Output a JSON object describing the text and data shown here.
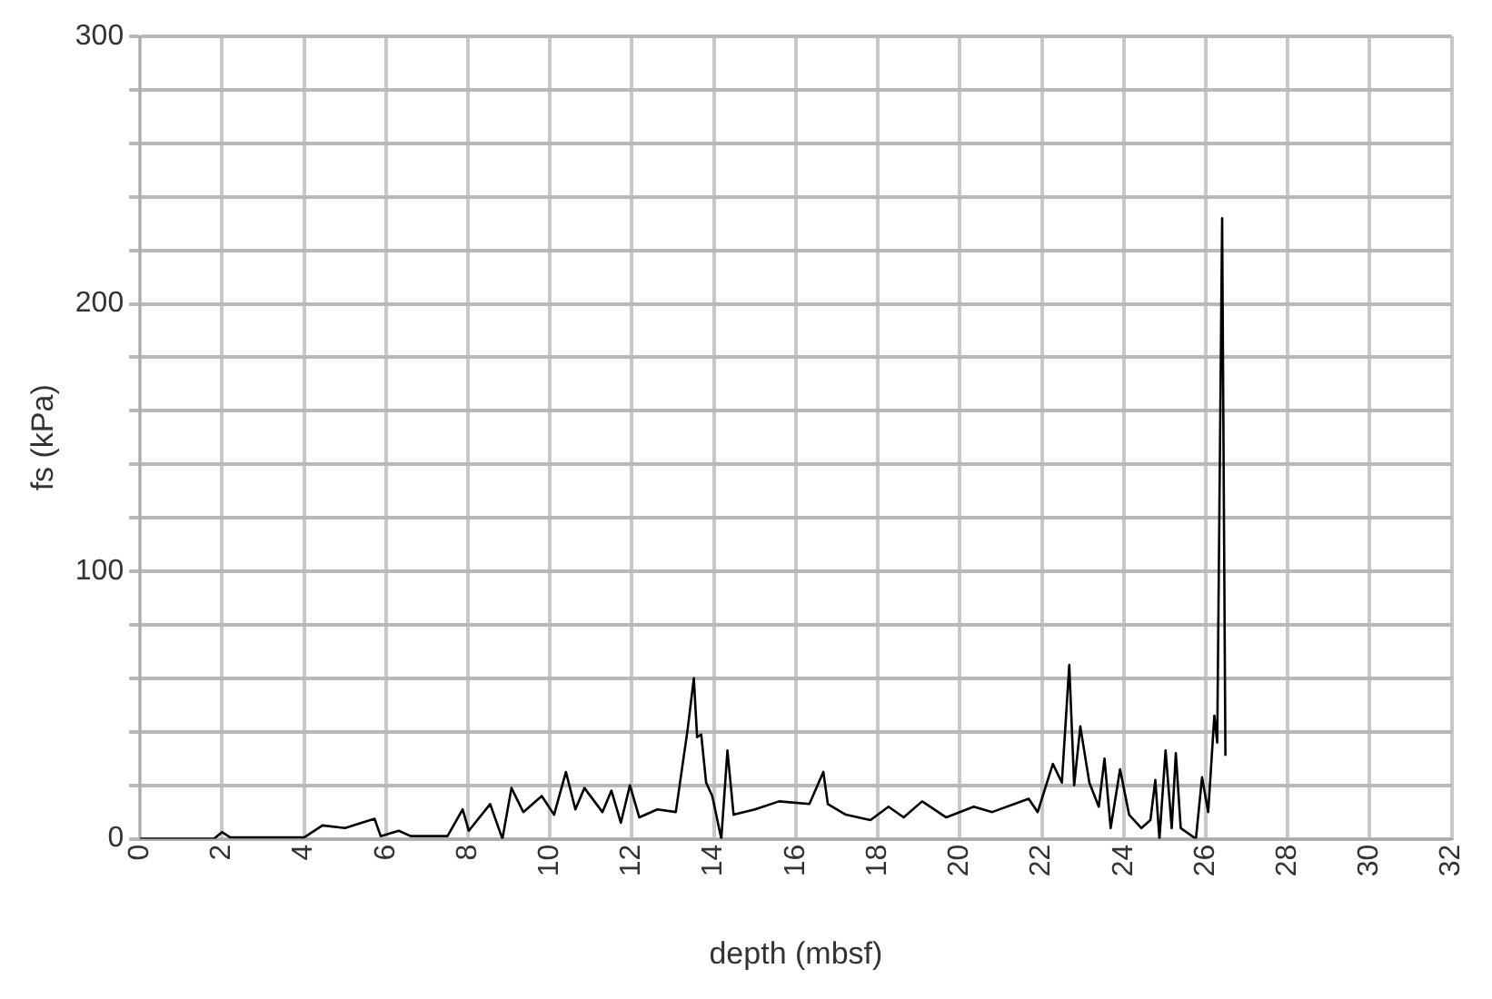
{
  "chart_data": {
    "type": "line",
    "xlabel": "depth (mbsf)",
    "ylabel": "fs (kPa)",
    "grid": true,
    "legend": false,
    "marker": "none",
    "line_style": "solid",
    "xlim": [
      0,
      32
    ],
    "xticks": [
      0,
      2,
      4,
      6,
      8,
      10,
      12,
      14,
      16,
      18,
      20,
      22,
      24,
      26,
      28,
      30,
      32
    ],
    "ylim": [
      0,
      300
    ],
    "yticks": [
      0,
      {
        "value": 20,
        "label": null
      },
      {
        "value": 40,
        "label": null
      },
      {
        "value": 60,
        "label": null
      },
      {
        "value": 80,
        "label": null
      },
      100,
      {
        "value": 120,
        "label": null
      },
      {
        "value": 140,
        "label": null
      },
      {
        "value": 160,
        "label": null
      },
      {
        "value": 180,
        "label": null
      },
      200,
      {
        "value": 220,
        "label": null
      },
      {
        "value": 240,
        "label": null
      },
      {
        "value": 260,
        "label": null
      },
      {
        "value": 280,
        "label": null
      },
      300
    ],
    "series": [
      {
        "color": "#000000",
        "x": [
          0,
          1.8,
          2.0,
          2.2,
          4.0,
          4.45,
          5.0,
          5.72,
          5.87,
          6.31,
          6.6,
          7.5,
          7.87,
          8.02,
          8.54,
          8.84,
          9.06,
          9.35,
          9.8,
          10.1,
          10.39,
          10.62,
          10.84,
          11.28,
          11.5,
          11.73,
          11.95,
          12.18,
          12.62,
          13.07,
          13.36,
          13.51,
          13.59,
          13.69,
          13.81,
          13.96,
          14.18,
          14.33,
          14.48,
          15.0,
          15.59,
          16.33,
          16.67,
          16.78,
          17.22,
          17.82,
          18.26,
          18.63,
          19.08,
          19.67,
          20.34,
          20.79,
          21.68,
          21.9,
          22.27,
          22.49,
          22.67,
          22.79,
          22.94,
          23.16,
          23.39,
          23.53,
          23.68,
          23.91,
          24.13,
          24.43,
          24.65,
          24.77,
          24.87,
          25.02,
          25.17,
          25.27,
          25.39,
          25.76,
          25.91,
          26.06,
          26.21,
          26.28,
          26.4,
          26.48
        ],
        "values": [
          0,
          0,
          2.5,
          0.5,
          0.5,
          5,
          4,
          7.5,
          1,
          3,
          1,
          1,
          11,
          3,
          13,
          0,
          19,
          10,
          16,
          9,
          25,
          11,
          19,
          10,
          18,
          6,
          20,
          8,
          11,
          10,
          41,
          60,
          38,
          39,
          21,
          16,
          0,
          33,
          9,
          11,
          14,
          13,
          25,
          13,
          9,
          7,
          12,
          8,
          14,
          8,
          12,
          10,
          15,
          10,
          28,
          21,
          65,
          20,
          42,
          21,
          12,
          30,
          4,
          26,
          9,
          4,
          7,
          22,
          0,
          33,
          4,
          32,
          4,
          0,
          23,
          10,
          46,
          36,
          232,
          31
        ]
      }
    ]
  }
}
